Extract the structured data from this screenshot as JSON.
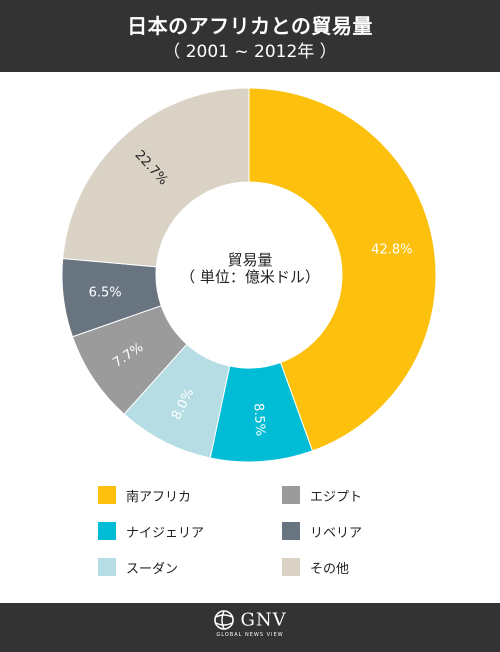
{
  "header": {
    "title": "日本のアフリカとの貿易量",
    "subtitle": "（ 2001 ~ 2012年 ）"
  },
  "center": {
    "title": "貿易量",
    "unit": "（ 単位：億米ドル）"
  },
  "chart_data": {
    "type": "pie",
    "categories": [
      "南アフリカ",
      "ナイジェリア",
      "スーダン",
      "エジプト",
      "リベリア",
      "その他"
    ],
    "values": [
      42.8,
      8.5,
      8.0,
      7.7,
      6.5,
      22.7
    ],
    "labels": [
      "42.8%",
      "8.5%",
      "8.0%",
      "7.7%",
      "6.5%",
      "22.7%"
    ],
    "colors": [
      "#FCC00D",
      "#00BCD4",
      "#B7DDE4",
      "#9B9B9B",
      "#687580",
      "#D9D2C5"
    ],
    "label_colors": [
      "#ffffff",
      "#ffffff",
      "#ffffff",
      "#ffffff",
      "#ffffff",
      "#222222"
    ],
    "legend_placement": "bottom",
    "donut": true
  },
  "footer": {
    "logo": "GNV",
    "tagline": "GLOBAL NEWS VIEW"
  }
}
